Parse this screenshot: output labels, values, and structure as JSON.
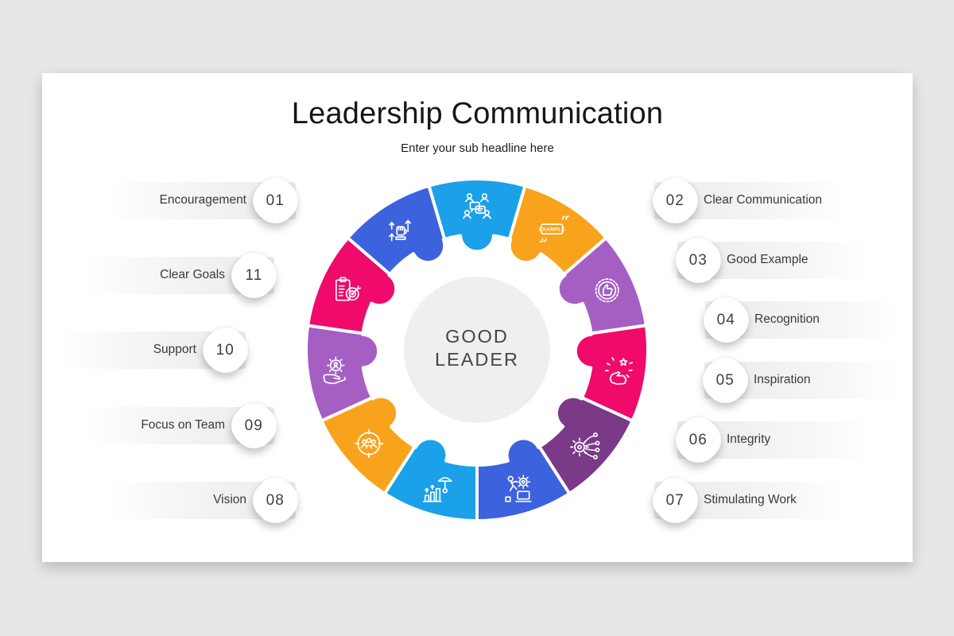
{
  "page": {
    "title": "Leadership Communication",
    "subtitle": "Enter your sub headline here"
  },
  "center": {
    "line1": "GOOD",
    "line2": "LEADER"
  },
  "left_items": [
    {
      "number": "01",
      "label": "Encouragement"
    },
    {
      "number": "11",
      "label": "Clear Goals"
    },
    {
      "number": "10",
      "label": "Support"
    },
    {
      "number": "09",
      "label": "Focus on Team"
    },
    {
      "number": "08",
      "label": "Vision"
    }
  ],
  "right_items": [
    {
      "number": "02",
      "label": "Clear Communication"
    },
    {
      "number": "03",
      "label": "Good Example"
    },
    {
      "number": "04",
      "label": "Recognition"
    },
    {
      "number": "05",
      "label": "Inspiration"
    },
    {
      "number": "06",
      "label": "Integrity"
    },
    {
      "number": "07",
      "label": "Stimulating Work"
    }
  ],
  "wheel": {
    "pieces": [
      {
        "number": "02",
        "label": "Clear Communication",
        "icon": "clear-communication-icon",
        "color": "#1BA0EA"
      },
      {
        "number": "03",
        "label": "Good Example",
        "icon": "good-example-icon",
        "color": "#F9A21B"
      },
      {
        "number": "04",
        "label": "Recognition",
        "icon": "recognition-icon",
        "color": "#A55FC3"
      },
      {
        "number": "05",
        "label": "Inspiration",
        "icon": "inspiration-icon",
        "color": "#F00A6B"
      },
      {
        "number": "06",
        "label": "Integrity",
        "icon": "integrity-icon",
        "color": "#7A3A88"
      },
      {
        "number": "07",
        "label": "Stimulating Work",
        "icon": "stimulating-work-icon",
        "color": "#3D62DE"
      },
      {
        "number": "08",
        "label": "Vision",
        "icon": "vision-icon",
        "color": "#1BA0EA"
      },
      {
        "number": "09",
        "label": "Focus on Team",
        "icon": "focus-on-team-icon",
        "color": "#F9A21B"
      },
      {
        "number": "10",
        "label": "Support",
        "icon": "support-icon",
        "color": "#A55FC3"
      },
      {
        "number": "11",
        "label": "Clear Goals",
        "icon": "clear-goals-icon",
        "color": "#F00A6B"
      },
      {
        "number": "01",
        "label": "Encouragement",
        "icon": "encouragement-icon",
        "color": "#3D62DE"
      }
    ]
  },
  "colors": {
    "canvas_background": "#E8E6E7",
    "slide_background": "#FFFFFF",
    "bar_fill": "#EBEBEB",
    "badge_fill": "#FFFFFF",
    "number_text": "#3F3F3F",
    "label_text": "#3A3A3A",
    "title_text": "#161616",
    "center_circle_fill": "#EFEFEF",
    "center_text": "#454545"
  }
}
